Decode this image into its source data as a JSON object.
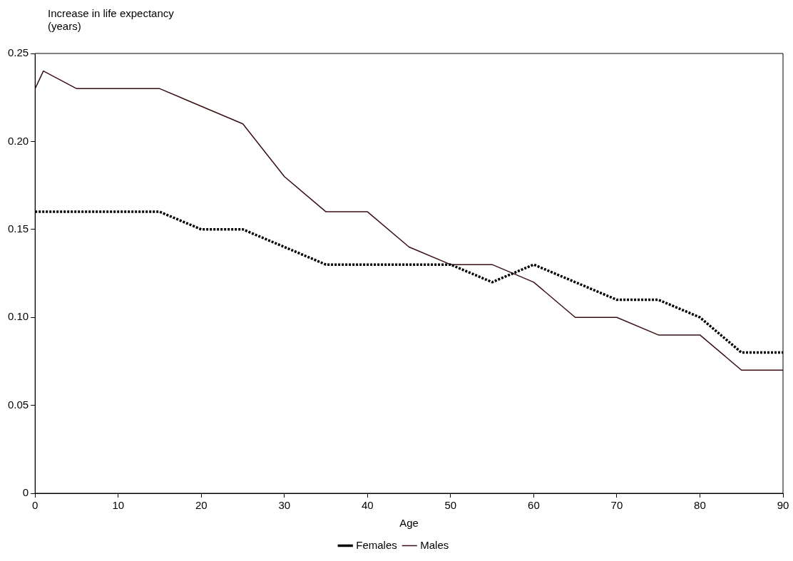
{
  "chart_data": {
    "type": "line",
    "xlabel": "Age",
    "ylabel": "Increase in life expectancy (years)",
    "xlim": [
      0,
      90
    ],
    "xticks": [
      0,
      10,
      20,
      30,
      40,
      50,
      60,
      70,
      80,
      90
    ],
    "ylim": [
      0,
      0.25
    ],
    "yticks": [
      0,
      0.05,
      {
        "value": 0.1,
        "label": "0.10"
      },
      0.15,
      {
        "value": 0.2,
        "label": "0.20"
      },
      0.25
    ],
    "grid": false,
    "legend": "bottom",
    "marker": "none",
    "series": [
      {
        "name": "Females",
        "color": "#000000",
        "line_style": "dotted",
        "x": [
          0,
          15,
          20,
          25,
          35,
          50,
          55,
          60,
          70,
          75,
          80,
          85,
          90
        ],
        "values": [
          0.16,
          0.16,
          0.15,
          0.15,
          0.13,
          0.13,
          0.12,
          0.13,
          0.11,
          0.11,
          0.1,
          0.08,
          0.08
        ]
      },
      {
        "name": "Males",
        "color": "#3a0f14",
        "line_style": "solid",
        "x": [
          0,
          1,
          5,
          15,
          25,
          30,
          35,
          40,
          45,
          50,
          55,
          60,
          65,
          70,
          75,
          80,
          85,
          90
        ],
        "values": [
          0.23,
          0.24,
          0.23,
          0.23,
          0.21,
          0.18,
          0.16,
          0.16,
          0.14,
          0.13,
          0.13,
          0.12,
          0.1,
          0.1,
          0.09,
          0.09,
          0.07,
          0.07
        ]
      }
    ]
  }
}
